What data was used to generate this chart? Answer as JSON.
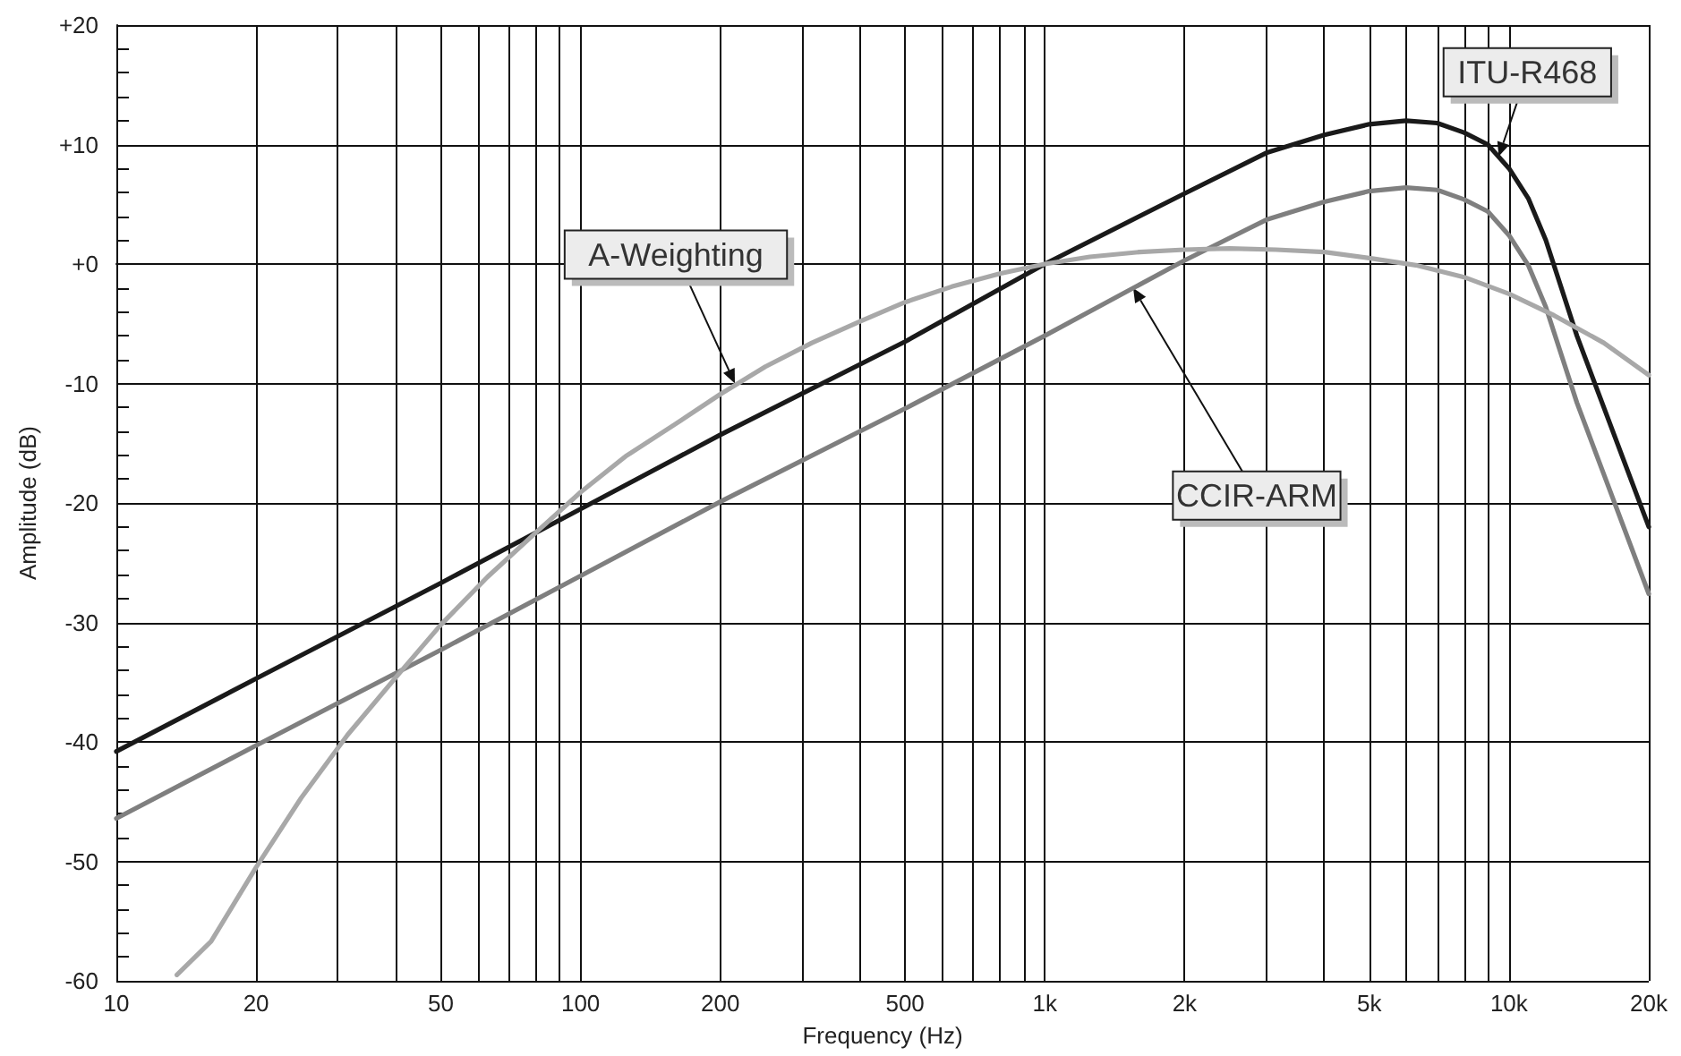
{
  "chart_data": {
    "type": "line",
    "xlabel": "Frequency (Hz)",
    "ylabel": "Amplitude (dB)",
    "log": "x",
    "xlim": [
      10,
      20000
    ],
    "xticks": [
      10,
      {
        "value": 20,
        "label": "20"
      },
      {
        "value": 30,
        "label": null
      },
      {
        "value": 40,
        "label": null
      },
      50,
      {
        "value": 60,
        "label": null
      },
      {
        "value": 70,
        "label": null
      },
      {
        "value": 80,
        "label": null
      },
      {
        "value": 90,
        "label": null
      },
      100,
      200,
      {
        "value": 300,
        "label": null
      },
      {
        "value": 400,
        "label": null
      },
      500,
      {
        "value": 600,
        "label": null
      },
      {
        "value": 700,
        "label": null
      },
      {
        "value": 800,
        "label": null
      },
      {
        "value": 900,
        "label": null
      },
      {
        "value": 1000,
        "label": "1k"
      },
      {
        "value": 2000,
        "label": "2k"
      },
      {
        "value": 3000,
        "label": null
      },
      {
        "value": 4000,
        "label": null
      },
      {
        "value": 5000,
        "label": "5k"
      },
      {
        "value": 6000,
        "label": null
      },
      {
        "value": 7000,
        "label": null
      },
      {
        "value": 8000,
        "label": null
      },
      {
        "value": 9000,
        "label": null
      },
      {
        "value": 10000,
        "label": "10k"
      },
      {
        "value": 20000,
        "label": "20k"
      }
    ],
    "ylim": [
      -60,
      20
    ],
    "yticks": [
      -60,
      {
        "value": -58,
        "label": null
      },
      {
        "value": -56,
        "label": null
      },
      {
        "value": -54,
        "label": null
      },
      {
        "value": -52,
        "label": null
      },
      -50,
      {
        "value": -48,
        "label": null
      },
      {
        "value": -46,
        "label": null
      },
      {
        "value": -44,
        "label": null
      },
      {
        "value": -42,
        "label": null
      },
      -40,
      {
        "value": -38,
        "label": null
      },
      {
        "value": -36,
        "label": null
      },
      {
        "value": -34,
        "label": null
      },
      {
        "value": -32,
        "label": null
      },
      -30,
      {
        "value": -28,
        "label": null
      },
      {
        "value": -26,
        "label": null
      },
      {
        "value": -24,
        "label": null
      },
      {
        "value": -22,
        "label": null
      },
      -20,
      {
        "value": -18,
        "label": null
      },
      {
        "value": -16,
        "label": null
      },
      {
        "value": -14,
        "label": null
      },
      {
        "value": -12,
        "label": null
      },
      -10,
      {
        "value": -8,
        "label": null
      },
      {
        "value": -6,
        "label": null
      },
      {
        "value": -4,
        "label": null
      },
      {
        "value": -2,
        "label": null
      },
      {
        "value": 0,
        "label": "+0"
      },
      {
        "value": 2,
        "label": null
      },
      {
        "value": 4,
        "label": null
      },
      {
        "value": 6,
        "label": null
      },
      {
        "value": 8,
        "label": null
      },
      {
        "value": 10,
        "label": "+10"
      },
      {
        "value": 12,
        "label": null
      },
      {
        "value": 14,
        "label": null
      },
      {
        "value": 16,
        "label": null
      },
      {
        "value": 18,
        "label": null
      },
      {
        "value": 20,
        "label": "+20"
      }
    ],
    "grid": true,
    "marker": "none",
    "line_style": "solid",
    "series": [
      {
        "color": "#a8a8a8",
        "x": [
          13.5,
          16,
          20,
          25,
          31.5,
          40,
          50,
          63,
          80,
          100,
          125,
          160,
          200,
          250,
          315,
          400,
          500,
          630,
          800,
          1000,
          1250,
          1600,
          2000,
          2500,
          3150,
          4000,
          5000,
          6300,
          8000,
          10000,
          12500,
          16000,
          20000
        ],
        "values": [
          -59.5,
          -56.7,
          -50.5,
          -44.7,
          -39.4,
          -34.6,
          -30.2,
          -26.2,
          -22.5,
          -19.1,
          -16.1,
          -13.4,
          -10.9,
          -8.6,
          -6.6,
          -4.8,
          -3.2,
          -1.9,
          -0.8,
          0,
          0.6,
          1.0,
          1.2,
          1.3,
          1.2,
          1.0,
          0.5,
          -0.1,
          -1.1,
          -2.5,
          -4.3,
          -6.6,
          -9.3
        ]
      },
      {
        "color": "#1a1a1a",
        "x": [
          10,
          20,
          50,
          100,
          200,
          500,
          1000,
          2000,
          3000,
          4000,
          5000,
          6000,
          7000,
          8000,
          9000,
          10000,
          11000,
          12000,
          14000,
          16000,
          20000
        ],
        "values": [
          -40.8,
          -34.7,
          -26.7,
          -20.5,
          -14.3,
          -6.5,
          0,
          5.9,
          9.3,
          10.8,
          11.7,
          12.0,
          11.8,
          11.0,
          10.0,
          8.0,
          5.5,
          2.0,
          -6.0,
          -12.0,
          -22.0
        ]
      },
      {
        "color": "#7f7f7f",
        "x": [
          10,
          20,
          50,
          100,
          200,
          500,
          1000,
          2000,
          3000,
          4000,
          5000,
          6000,
          7000,
          8000,
          9000,
          10000,
          11000,
          12000,
          14000,
          16000,
          20000
        ],
        "values": [
          -46.4,
          -40.3,
          -32.3,
          -26.1,
          -19.9,
          -12.1,
          -6.0,
          0.3,
          3.7,
          5.2,
          6.1,
          6.4,
          6.2,
          5.4,
          4.4,
          2.4,
          -0.1,
          -3.6,
          -11.6,
          -17.6,
          -27.6
        ]
      }
    ],
    "annotations": [
      {
        "text": "A-Weighting",
        "x": 215,
        "y": -10
      },
      {
        "text": "ITU-R468",
        "x": 9500,
        "y": 9
      },
      {
        "text": "CCIR-ARM",
        "x": 1550,
        "y": -2.0
      }
    ]
  }
}
